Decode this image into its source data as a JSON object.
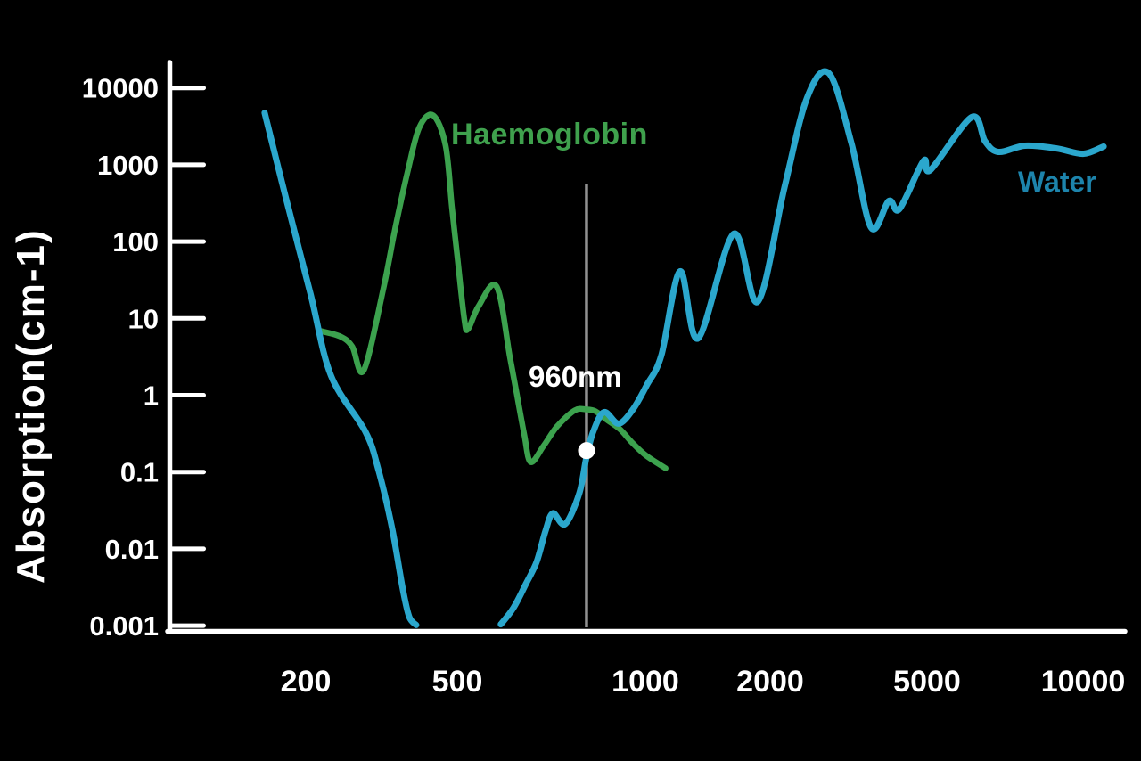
{
  "chart_data": {
    "type": "line",
    "title": "",
    "x_axis": {
      "unit": "nm",
      "scale": "log",
      "range": [
        150,
        11000
      ],
      "ticks": [
        {
          "label": "200",
          "value": 200
        },
        {
          "label": "500",
          "value": 500
        },
        {
          "label": "1000",
          "value": 1000
        },
        {
          "label": "2000",
          "value": 2000
        },
        {
          "label": "5000",
          "value": 5000
        },
        {
          "label": "10000",
          "value": 10000
        }
      ]
    },
    "y_axis": {
      "label": "Absorption(cm-1)",
      "scale": "log",
      "range": [
        0.001,
        10000
      ],
      "ticks": [
        {
          "label": "10000",
          "value": 10000
        },
        {
          "label": "1000",
          "value": 1000
        },
        {
          "label": "100",
          "value": 100
        },
        {
          "label": "10",
          "value": 10
        },
        {
          "label": "1",
          "value": 1
        },
        {
          "label": "0.1",
          "value": 0.1
        },
        {
          "label": "0.01",
          "value": 0.01
        },
        {
          "label": "0.001",
          "value": 0.001
        }
      ]
    },
    "series": [
      {
        "name": "Haemoglobin",
        "color": "#3ca24e",
        "label_color": "#3fa14d",
        "points": [
          [
            219,
            6.84
          ],
          [
            247,
            5.79
          ],
          [
            265,
            4.3
          ],
          [
            284,
            2.11
          ],
          [
            320,
            24.7
          ],
          [
            343,
            144
          ],
          [
            370,
            794
          ],
          [
            397,
            3020
          ],
          [
            432,
            4400
          ],
          [
            466,
            1770
          ],
          [
            484,
            280
          ],
          [
            500,
            64.6
          ],
          [
            513,
            9.95
          ],
          [
            520,
            7.21
          ],
          [
            541,
            14.5
          ],
          [
            578,
            26
          ],
          [
            607,
            3.15
          ],
          [
            623,
            1.0
          ],
          [
            640,
            0.309
          ],
          [
            655,
            0.135
          ],
          [
            687,
            0.218
          ],
          [
            722,
            0.392
          ],
          [
            771,
            0.635
          ],
          [
            805,
            0.652
          ],
          [
            832,
            0.618
          ],
          [
            865,
            0.486
          ],
          [
            910,
            0.362
          ],
          [
            955,
            0.236
          ],
          [
            1005,
            0.163
          ],
          [
            1119,
            0.112
          ]
        ]
      },
      {
        "name": "Water",
        "color": "#2ba7cd",
        "label_color": "#1d84ac",
        "segments": [
          [
            [
              156,
              4750
            ],
            [
              177,
              386
            ],
            [
              206,
              20.5
            ],
            [
              233,
              1.8
            ],
            [
              287,
              0.334
            ],
            [
              310,
              0.109
            ],
            [
              337,
              0.0187
            ],
            [
              360,
              0.0029
            ],
            [
              374,
              0.0013
            ],
            [
              390,
              0.00102
            ]
          ],
          [
            [
              587,
              0.00104
            ],
            [
              615,
              0.0017
            ],
            [
              644,
              0.0035
            ],
            [
              670,
              0.0068
            ],
            [
              692,
              0.017
            ],
            [
              711,
              0.029
            ],
            [
              744,
              0.021
            ],
            [
              784,
              0.053
            ],
            [
              805,
              0.158
            ],
            [
              826,
              0.343
            ],
            [
              859,
              0.602
            ],
            [
              906,
              0.427
            ],
            [
              955,
              0.652
            ],
            [
              1007,
              1.34
            ],
            [
              1093,
              3.33
            ],
            [
              1213,
              41
            ],
            [
              1340,
              5.5
            ],
            [
              1633,
              126
            ],
            [
              1866,
              16.5
            ],
            [
              2174,
              505
            ],
            [
              2477,
              7290
            ],
            [
              2820,
              15500
            ],
            [
              3214,
              1920
            ],
            [
              3606,
              152
            ],
            [
              4000,
              338
            ],
            [
              4257,
              266
            ],
            [
              4898,
              1125
            ],
            [
              5081,
              861
            ],
            [
              6095,
              4160
            ],
            [
              6471,
              2020
            ],
            [
              6868,
              1470
            ],
            [
              7727,
              1770
            ],
            [
              8892,
              1630
            ],
            [
              10000,
              1390
            ],
            [
              10957,
              1730
            ]
          ]
        ]
      }
    ],
    "annotation": {
      "label": "960nm",
      "nm": 960,
      "drawn_at_nm": 805,
      "marker_cm1": 0.19,
      "marker_on": "Water",
      "line_color": "#919191",
      "dot_color": "#ffffff"
    }
  }
}
